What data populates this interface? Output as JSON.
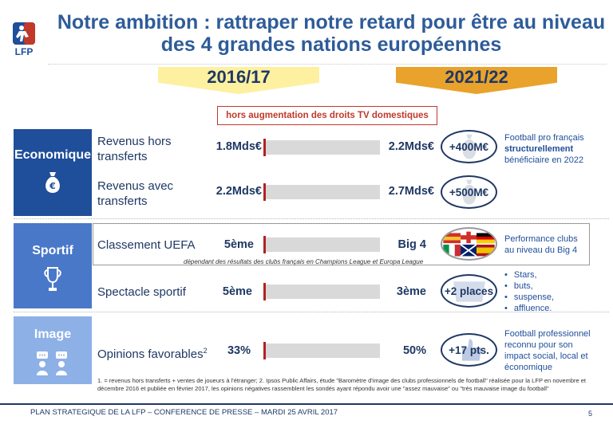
{
  "logo": {
    "text": "LFP"
  },
  "title": {
    "line1": "Notre ambition : rattraper notre retard pour être au niveau",
    "line2": "des 4 grandes nations européennes"
  },
  "years": {
    "left": "2016/17",
    "right": "2021/22"
  },
  "note_box": "hors augmentation des droits TV domestiques",
  "sections": {
    "economique": {
      "label": "Economique",
      "icon": "euro-moneybag-icon"
    },
    "sportif": {
      "label": "Sportif",
      "icon": "trophy-icon"
    },
    "image": {
      "label": "Image",
      "icon": "people-chat-icon"
    }
  },
  "rows": [
    {
      "label_l1": "Revenus hors",
      "label_l2": "transferts",
      "left": "1.8Mds€",
      "right": "2.2Mds€",
      "badge": "+400M€"
    },
    {
      "label_l1": "Revenus avec",
      "label_l2": "transferts",
      "left": "2.2Mds€",
      "right": "2.7Mds€",
      "badge": "+500M€"
    },
    {
      "label_l1": "Classement UEFA",
      "left": "5ème",
      "right": "Big 4"
    },
    {
      "label_l1": "Spectacle sportif",
      "left": "5ème",
      "right": "3ème",
      "badge": "+2 places"
    },
    {
      "label_l1": "Opinions favorables",
      "sup": "2",
      "left": "33%",
      "right": "50%",
      "badge": "+17 pts."
    }
  ],
  "uefa_note": "dépendant des résultats des clubs français en Champions League et Europa League",
  "side_notes": {
    "eco_l1": "Football pro français",
    "eco_l2": "structurellement",
    "eco_l3": "bénéficiaire en 2022",
    "uefa_l1": "Performance clubs",
    "uefa_l2": "au niveau du Big 4",
    "image_l1": "Football professionnel",
    "image_l2": "reconnu pour son",
    "image_l3": "impact social, local et",
    "image_l4": "économique"
  },
  "bullets": [
    "Stars,",
    "buts,",
    "suspense,",
    "affluence."
  ],
  "footnote": "1. = revenus hors transferts + ventes de joueurs à l'étranger; 2. Ipsos Public Affairs, étude \"Baromètre d'image des clubs professionnels de football\" réalisée pour la LFP en novembre et décembre 2016 et publiée en février 2017, les opinions négatives rassemblent les sondés ayant répondu avoir une \"assez mauvaise\" ou \"très mauvaise image du football\"",
  "footer": "PLAN STRATEGIQUE DE LA LFP – CONFERENCE DE PRESSE – MARDI 25 AVRIL 2017",
  "page_number": "5",
  "colors": {
    "dark_blue": "#1f4e9a",
    "mid_blue": "#4a78c9",
    "light_blue": "#8db0e6",
    "yellow": "#fdf0a0",
    "orange": "#e9a22b",
    "red": "#b22222"
  }
}
